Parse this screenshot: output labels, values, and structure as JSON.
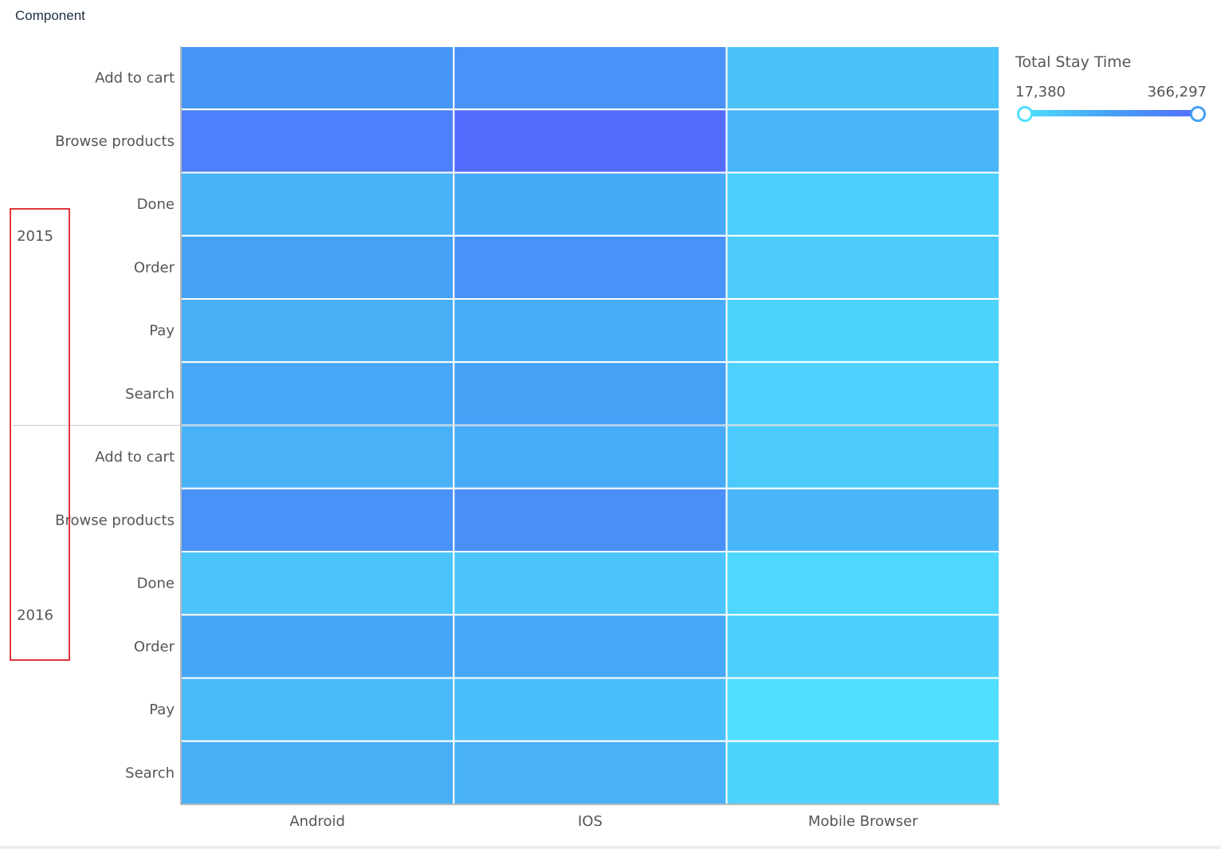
{
  "component_label": "Component",
  "legend": {
    "title": "Total Stay Time",
    "min_label": "17,380",
    "max_label": "366,297",
    "min": 17380,
    "max": 366297,
    "color_low": "#50dfff",
    "color_mid": "#45a0f5",
    "color_high": "#546cfe"
  },
  "chart_data": {
    "type": "heatmap",
    "title": "",
    "xlabel": "",
    "ylabel": "",
    "x_categories": [
      "Android",
      "IOS",
      "Mobile Browser"
    ],
    "groups": [
      {
        "name": "2015",
        "rows": [
          "Add to cart",
          "Browse products",
          "Done",
          "Order",
          "Pay",
          "Search"
        ],
        "values": [
          [
            220000,
            240000,
            100000
          ],
          [
            300000,
            366297,
            130000
          ],
          [
            140000,
            165000,
            60000
          ],
          [
            190000,
            240000,
            70000
          ],
          [
            150000,
            160000,
            50000
          ],
          [
            170000,
            190000,
            55000
          ]
        ]
      },
      {
        "name": "2016",
        "rows": [
          "Add to cart",
          "Browse products",
          "Done",
          "Order",
          "Pay",
          "Search"
        ],
        "values": [
          [
            145000,
            160000,
            75000
          ],
          [
            240000,
            250000,
            130000
          ],
          [
            95000,
            90000,
            40000
          ],
          [
            175000,
            170000,
            65000
          ],
          [
            120000,
            110000,
            17380
          ],
          [
            150000,
            145000,
            50000
          ]
        ]
      }
    ],
    "visual_map": {
      "min": 17380,
      "max": 366297,
      "colors": [
        "#50dfff",
        "#45a0f5",
        "#546cfe"
      ]
    },
    "grid": false,
    "legend_position": "top-right"
  },
  "annotation": {
    "color": "#e0363c"
  }
}
